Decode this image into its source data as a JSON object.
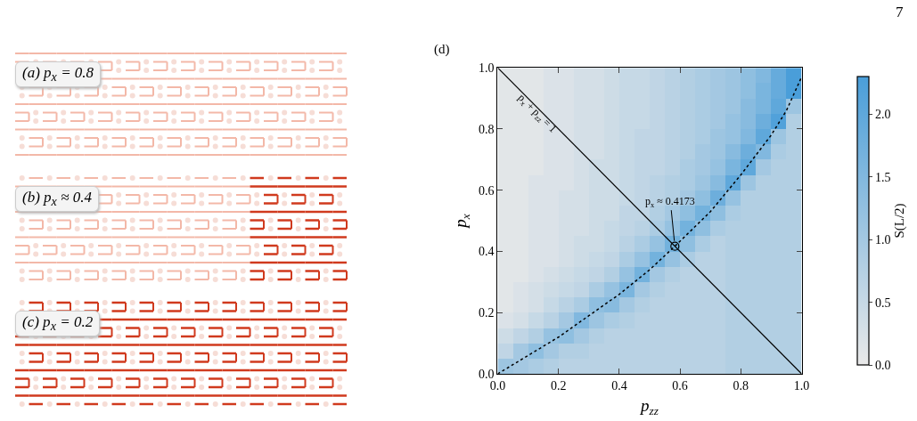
{
  "chart_data": {
    "type": "heatmap",
    "x": [
      0.025,
      0.075,
      0.125,
      0.175,
      0.225,
      0.275,
      0.325,
      0.375,
      0.425,
      0.475,
      0.525,
      0.575,
      0.625,
      0.675,
      0.725,
      0.775,
      0.825,
      0.875,
      0.925,
      0.975
    ],
    "y": [
      0.975,
      0.925,
      0.875,
      0.825,
      0.775,
      0.725,
      0.675,
      0.625,
      0.575,
      0.525,
      0.475,
      0.425,
      0.375,
      0.325,
      0.275,
      0.225,
      0.175,
      0.125,
      0.075,
      0.025
    ],
    "cells": [
      [
        0.1,
        0.1,
        0.1,
        0.2,
        0.2,
        0.3,
        0.3,
        0.4,
        0.5,
        0.5,
        0.6,
        0.7,
        0.8,
        0.9,
        1.0,
        1.1,
        1.3,
        1.5,
        1.9,
        2.3
      ],
      [
        0.1,
        0.1,
        0.1,
        0.2,
        0.2,
        0.3,
        0.3,
        0.4,
        0.5,
        0.5,
        0.6,
        0.7,
        0.8,
        0.9,
        1.0,
        1.1,
        1.3,
        1.6,
        1.9,
        2.3
      ],
      [
        0.1,
        0.1,
        0.1,
        0.2,
        0.2,
        0.3,
        0.3,
        0.4,
        0.5,
        0.5,
        0.6,
        0.7,
        0.8,
        0.9,
        1.0,
        1.1,
        1.4,
        1.6,
        2.0,
        1.1
      ],
      [
        0.1,
        0.1,
        0.1,
        0.2,
        0.2,
        0.3,
        0.3,
        0.4,
        0.5,
        0.5,
        0.6,
        0.7,
        0.8,
        0.9,
        1.0,
        1.2,
        1.4,
        1.8,
        2.2,
        0.8
      ],
      [
        0.1,
        0.1,
        0.1,
        0.2,
        0.2,
        0.3,
        0.3,
        0.4,
        0.5,
        0.6,
        0.6,
        0.7,
        0.8,
        0.9,
        1.1,
        1.2,
        1.5,
        2.0,
        1.1,
        0.8
      ],
      [
        0.1,
        0.1,
        0.1,
        0.2,
        0.2,
        0.3,
        0.3,
        0.4,
        0.5,
        0.6,
        0.6,
        0.7,
        0.8,
        1.0,
        1.1,
        1.4,
        1.8,
        1.5,
        0.9,
        0.8
      ],
      [
        0.1,
        0.1,
        0.1,
        0.2,
        0.2,
        0.3,
        0.4,
        0.4,
        0.5,
        0.6,
        0.6,
        0.7,
        0.9,
        1.0,
        1.2,
        1.6,
        2.0,
        1.0,
        0.8,
        0.8
      ],
      [
        0.1,
        0.1,
        0.2,
        0.2,
        0.2,
        0.3,
        0.4,
        0.4,
        0.5,
        0.6,
        0.7,
        0.8,
        0.9,
        1.1,
        1.4,
        2.0,
        1.1,
        0.8,
        0.8,
        0.8
      ],
      [
        0.1,
        0.1,
        0.2,
        0.2,
        0.3,
        0.3,
        0.4,
        0.4,
        0.5,
        0.6,
        0.7,
        0.8,
        1.0,
        1.3,
        1.8,
        1.2,
        0.8,
        0.8,
        0.8,
        0.8
      ],
      [
        0.1,
        0.1,
        0.2,
        0.2,
        0.3,
        0.3,
        0.4,
        0.4,
        0.6,
        0.6,
        0.8,
        1.0,
        1.3,
        1.7,
        1.3,
        0.9,
        0.8,
        0.8,
        0.8,
        0.8
      ],
      [
        0.1,
        0.1,
        0.2,
        0.2,
        0.3,
        0.3,
        0.4,
        0.5,
        0.6,
        0.7,
        0.9,
        1.2,
        1.7,
        1.3,
        0.9,
        0.8,
        0.8,
        0.8,
        0.8,
        0.8
      ],
      [
        0.1,
        0.1,
        0.2,
        0.2,
        0.3,
        0.4,
        0.4,
        0.5,
        0.7,
        0.9,
        1.2,
        1.7,
        1.3,
        0.9,
        0.7,
        0.8,
        0.8,
        0.8,
        0.8,
        0.8
      ],
      [
        0.1,
        0.1,
        0.2,
        0.2,
        0.3,
        0.4,
        0.5,
        0.6,
        0.9,
        1.2,
        1.7,
        1.2,
        0.9,
        0.7,
        0.7,
        0.8,
        0.8,
        0.8,
        0.8,
        0.8
      ],
      [
        0.1,
        0.1,
        0.2,
        0.3,
        0.4,
        0.5,
        0.6,
        0.8,
        1.2,
        1.7,
        1.0,
        0.8,
        0.7,
        0.7,
        0.7,
        0.8,
        0.8,
        0.8,
        0.8,
        0.8
      ],
      [
        0.1,
        0.2,
        0.3,
        0.4,
        0.5,
        0.6,
        0.9,
        1.2,
        1.6,
        1.0,
        0.8,
        0.7,
        0.7,
        0.7,
        0.7,
        0.8,
        0.8,
        0.8,
        0.8,
        0.8
      ],
      [
        0.1,
        0.2,
        0.3,
        0.5,
        0.7,
        0.9,
        1.3,
        1.4,
        1.0,
        0.8,
        0.7,
        0.7,
        0.7,
        0.7,
        0.7,
        0.8,
        0.8,
        0.8,
        0.8,
        0.8
      ],
      [
        0.2,
        0.3,
        0.5,
        0.7,
        1.0,
        1.5,
        1.1,
        0.9,
        0.8,
        0.7,
        0.7,
        0.7,
        0.7,
        0.7,
        0.7,
        0.8,
        0.8,
        0.8,
        0.8,
        0.8
      ],
      [
        0.4,
        0.6,
        0.8,
        1.2,
        1.3,
        1.0,
        0.8,
        0.7,
        0.7,
        0.7,
        0.7,
        0.7,
        0.7,
        0.7,
        0.7,
        0.8,
        0.8,
        0.8,
        0.8,
        0.8
      ],
      [
        0.6,
        1.0,
        1.3,
        1.0,
        0.8,
        0.8,
        0.7,
        0.7,
        0.7,
        0.7,
        0.7,
        0.7,
        0.7,
        0.7,
        0.7,
        0.8,
        0.8,
        0.8,
        0.8,
        0.8
      ],
      [
        1.1,
        1.0,
        0.9,
        0.8,
        0.7,
        0.7,
        0.7,
        0.7,
        0.7,
        0.7,
        0.7,
        0.7,
        0.7,
        0.7,
        0.7,
        0.8,
        0.8,
        0.8,
        0.8,
        0.8
      ]
    ],
    "colors": [
      "#e9e9e9",
      "#4a9ed9"
    ],
    "clim": [
      0,
      2.3
    ],
    "cticks": [
      {
        "value": 0,
        "label": "0.0"
      },
      {
        "value": 0.5,
        "label": "0.5"
      },
      {
        "value": 1,
        "label": "1.0"
      },
      {
        "value": 1.5,
        "label": "1.5"
      },
      {
        "value": 2,
        "label": "2.0"
      }
    ],
    "clabel": "S(L/2)",
    "xlabel": "p$_{zz}$",
    "ylabel": "p$_{x}$",
    "xlim": [
      0,
      1
    ],
    "ylim": [
      0,
      1
    ],
    "xticks": [
      {
        "value": 0,
        "label": "0.0"
      },
      {
        "value": 0.2,
        "label": "0.2"
      },
      {
        "value": 0.4,
        "label": "0.4"
      },
      {
        "value": 0.6,
        "label": "0.6"
      },
      {
        "value": 0.8,
        "label": "0.8"
      },
      {
        "value": 1,
        "label": "1.0"
      }
    ],
    "yticks": [
      {
        "value": 0,
        "label": "0.0"
      },
      {
        "value": 0.2,
        "label": "0.2"
      },
      {
        "value": 0.4,
        "label": "0.4"
      },
      {
        "value": 0.6,
        "label": "0.6"
      },
      {
        "value": 0.8,
        "label": "0.8"
      },
      {
        "value": 1,
        "label": "1.0"
      }
    ],
    "series": [
      {
        "type": "line",
        "color": "#000000",
        "line_style": "solid",
        "marker": "none",
        "x": [
          0,
          1
        ],
        "values": [
          1,
          0
        ]
      },
      {
        "type": "line",
        "color": "#000000",
        "line_style": "dotted",
        "marker": "none",
        "x": [
          0,
          0.1,
          0.2,
          0.3,
          0.4,
          0.5,
          0.583,
          0.7,
          0.8,
          0.9,
          0.95,
          1.0
        ],
        "values": [
          0,
          0.06,
          0.12,
          0.19,
          0.26,
          0.34,
          0.417,
          0.53,
          0.65,
          0.78,
          0.86,
          0.97
        ]
      },
      {
        "type": "scatter",
        "color": "#000000",
        "marker": "circle",
        "x": [
          0.583
        ],
        "values": [
          0.417
        ]
      }
    ],
    "annotations": [
      "(a)  p$_{x}$ = 0.8",
      "(b)  p$_{x}$ ≈ 0.4",
      "(c)  p$_{x}$ = 0.2",
      "(d)",
      "7",
      {
        "text": "p$_{x}$ + p$_{zz}$ = 1",
        "x": 0.13,
        "y": 0.85
      },
      {
        "text": "p$_{x}$ ≈ 0.4173",
        "x": 0.583,
        "y": 0.417
      }
    ]
  }
}
